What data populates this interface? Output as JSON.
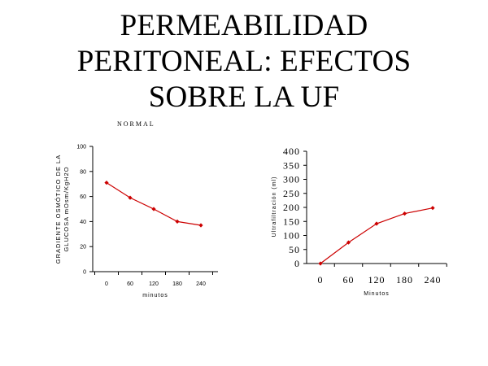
{
  "slide": {
    "title_lines": [
      "PERMEABILIDAD",
      "PERITONEAL: EFECTOS",
      "SOBRE LA UF"
    ],
    "subtitle": "NORMAL"
  },
  "chart_data": [
    {
      "type": "line",
      "x": [
        0,
        60,
        120,
        180,
        240
      ],
      "series": [
        {
          "values": [
            71,
            59,
            50,
            40,
            37
          ],
          "color": "#cc0000"
        }
      ],
      "ylabel_lines": [
        "GRADIENTE OSMÓTICO DE LA",
        "GLUCOSA mOsm/KgH2O"
      ],
      "xlabel": "minutos",
      "ylim": [
        0,
        100
      ],
      "yticks": [
        0,
        20,
        40,
        60,
        80,
        100
      ],
      "xticks": [
        0,
        60,
        120,
        180,
        240
      ]
    },
    {
      "type": "line",
      "x": [
        0,
        60,
        120,
        180,
        240
      ],
      "series": [
        {
          "values": [
            0,
            75,
            142,
            178,
            198
          ],
          "color": "#cc0000"
        }
      ],
      "ylabel": "Ultrafiltración (ml)",
      "xlabel": "Minutos",
      "ylim": [
        0,
        400
      ],
      "yticks": [
        0,
        50,
        100,
        150,
        200,
        250,
        300,
        350,
        400
      ],
      "xticks": [
        0,
        60,
        120,
        180,
        240
      ]
    }
  ]
}
